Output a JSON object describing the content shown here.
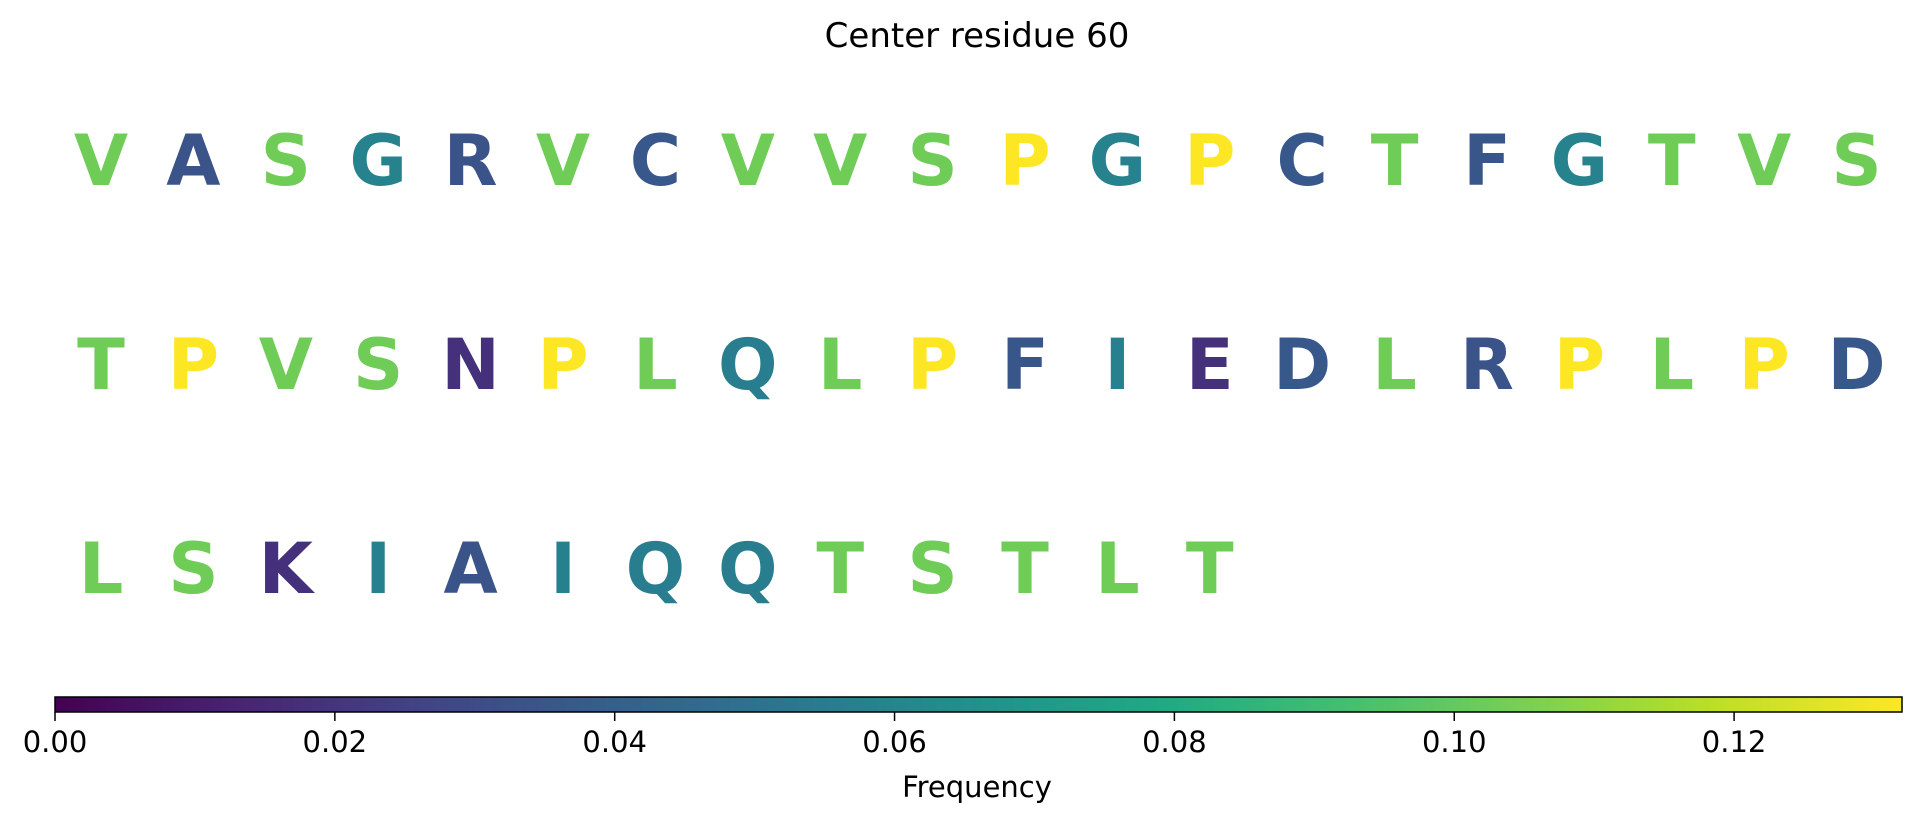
{
  "chart_data": {
    "type": "heatmap",
    "title": "Center residue 60",
    "rows": [
      {
        "letters": [
          "V",
          "A",
          "S",
          "G",
          "R",
          "V",
          "C",
          "V",
          "V",
          "S",
          "P",
          "G",
          "P",
          "C",
          "T",
          "F",
          "G",
          "T",
          "V",
          "S"
        ],
        "values": [
          0.103,
          0.034,
          0.103,
          0.058,
          0.034,
          0.103,
          0.036,
          0.103,
          0.103,
          0.103,
          0.132,
          0.058,
          0.132,
          0.036,
          0.103,
          0.035,
          0.058,
          0.103,
          0.103,
          0.103
        ]
      },
      {
        "letters": [
          "T",
          "P",
          "V",
          "S",
          "N",
          "P",
          "L",
          "Q",
          "L",
          "P",
          "F",
          "I",
          "E",
          "D",
          "L",
          "R",
          "P",
          "L",
          "P",
          "D"
        ],
        "values": [
          0.103,
          0.132,
          0.103,
          0.103,
          0.018,
          0.132,
          0.103,
          0.056,
          0.103,
          0.132,
          0.035,
          0.057,
          0.018,
          0.036,
          0.103,
          0.034,
          0.132,
          0.103,
          0.132,
          0.036
        ]
      },
      {
        "letters": [
          "L",
          "S",
          "K",
          "I",
          "A",
          "I",
          "Q",
          "Q",
          "T",
          "S",
          "T",
          "L",
          "T"
        ],
        "values": [
          0.103,
          0.103,
          0.018,
          0.057,
          0.034,
          0.057,
          0.056,
          0.056,
          0.103,
          0.103,
          0.103,
          0.103,
          0.103
        ]
      }
    ],
    "colorbar": {
      "label": "Frequency",
      "range": [
        0,
        0.132
      ],
      "colormap": "viridis",
      "ticks": [
        0.0,
        0.02,
        0.04,
        0.06,
        0.08,
        0.1,
        0.12
      ],
      "tick_labels": [
        "0.00",
        "0.02",
        "0.04",
        "0.06",
        "0.08",
        "0.10",
        "0.12"
      ]
    }
  }
}
